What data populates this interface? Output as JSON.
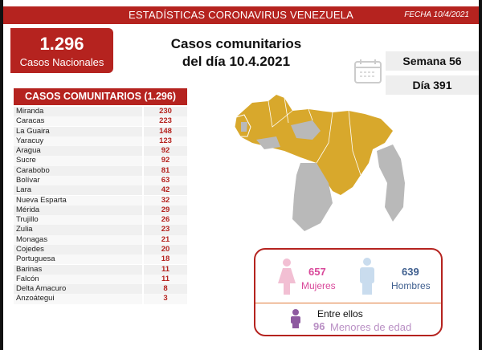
{
  "header": {
    "title": "ESTADÍSTICAS CORONAVIRUS VENEZUELA",
    "date": "FECHA 10/4/2021"
  },
  "national": {
    "value": "1.296",
    "label": "Casos Nacionales"
  },
  "main_title": {
    "line1": "Casos comunitarios",
    "line2": "del día 10.4.2021"
  },
  "week": "Semana 56",
  "day": "Día 391",
  "table": {
    "header": "CASOS COMUNITARIOS (1.296)",
    "rows": [
      {
        "state": "Miranda",
        "cases": "230"
      },
      {
        "state": "Caracas",
        "cases": "223"
      },
      {
        "state": "La Guaira",
        "cases": "148"
      },
      {
        "state": "Yaracuy",
        "cases": "123"
      },
      {
        "state": "Aragua",
        "cases": "92"
      },
      {
        "state": "Sucre",
        "cases": "92"
      },
      {
        "state": "Carabobo",
        "cases": "81"
      },
      {
        "state": "Bolívar",
        "cases": "63"
      },
      {
        "state": "Lara",
        "cases": "42"
      },
      {
        "state": "Nueva Esparta",
        "cases": "32"
      },
      {
        "state": "Mérida",
        "cases": "29"
      },
      {
        "state": "Trujillo",
        "cases": "26"
      },
      {
        "state": "Zulia",
        "cases": "23"
      },
      {
        "state": "Monagas",
        "cases": "21"
      },
      {
        "state": "Cojedes",
        "cases": "20"
      },
      {
        "state": "Portuguesa",
        "cases": "18"
      },
      {
        "state": "Barinas",
        "cases": "11"
      },
      {
        "state": "Falcón",
        "cases": "11"
      },
      {
        "state": "Delta Amacuro",
        "cases": "8"
      },
      {
        "state": "Anzoátegui",
        "cases": "3"
      }
    ]
  },
  "gender": {
    "women": "657",
    "women_label": "Mujeres",
    "men": "639",
    "men_label": "Hombres",
    "among": "Entre ellos",
    "minors": "96",
    "minors_label": "Menores de edad"
  },
  "colors": {
    "red": "#b5231f",
    "map_yellow": "#d8a82c",
    "map_gray": "#b9b9b9",
    "women": "#d9489a",
    "men": "#3f5f8f",
    "minors": "#8e5aa0"
  }
}
